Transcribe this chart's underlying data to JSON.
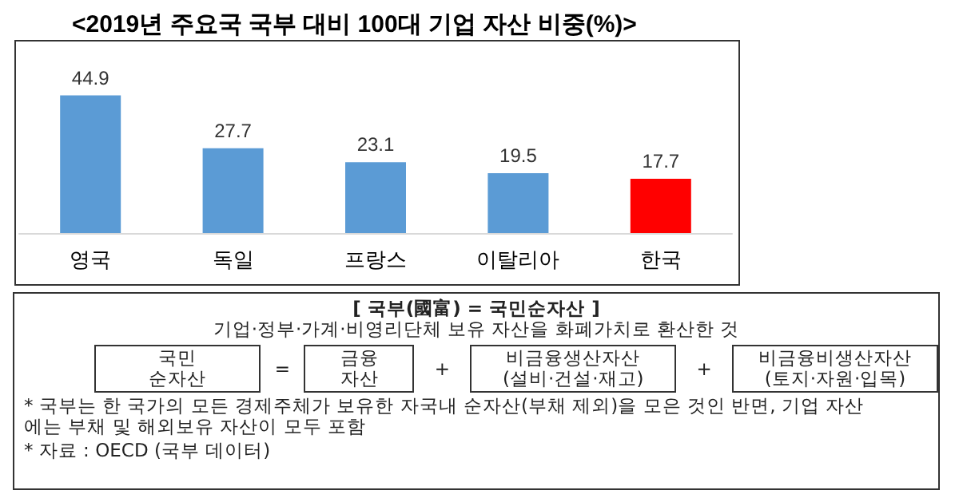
{
  "chart_data": {
    "type": "bar",
    "title": "<2019년 주요국 국부 대비 100대 기업 자산 비중(%)>",
    "categories": [
      "영국",
      "독일",
      "프랑스",
      "이탈리아",
      "한국"
    ],
    "values": [
      44.9,
      27.7,
      23.1,
      19.5,
      17.7
    ],
    "colors": [
      "#5b9bd5",
      "#5b9bd5",
      "#5b9bd5",
      "#5b9bd5",
      "#ff0000"
    ],
    "data_labels": true,
    "annotations": [
      "[ 국부(國富) = 국민순자산 ]",
      "기업·정부·가계·비영리단체 보유 자산을 화폐가치로 환산한 것",
      "국민\n순자산",
      "=",
      "금융\n자산",
      "+",
      "비금융생산자산\n(설비·건설·재고)",
      "+",
      "비금융비생산자산\n(토지·자원·입목)",
      "* 국부는 한 국가의 모든 경제주체가 보유한 자국내 순자산(부채 제외)을 모은 것인 반면, 기업 자산\n에는 부채 및 해외보유 자산이 모두 포함",
      "* 자료 : OECD (국부 데이터)"
    ]
  }
}
